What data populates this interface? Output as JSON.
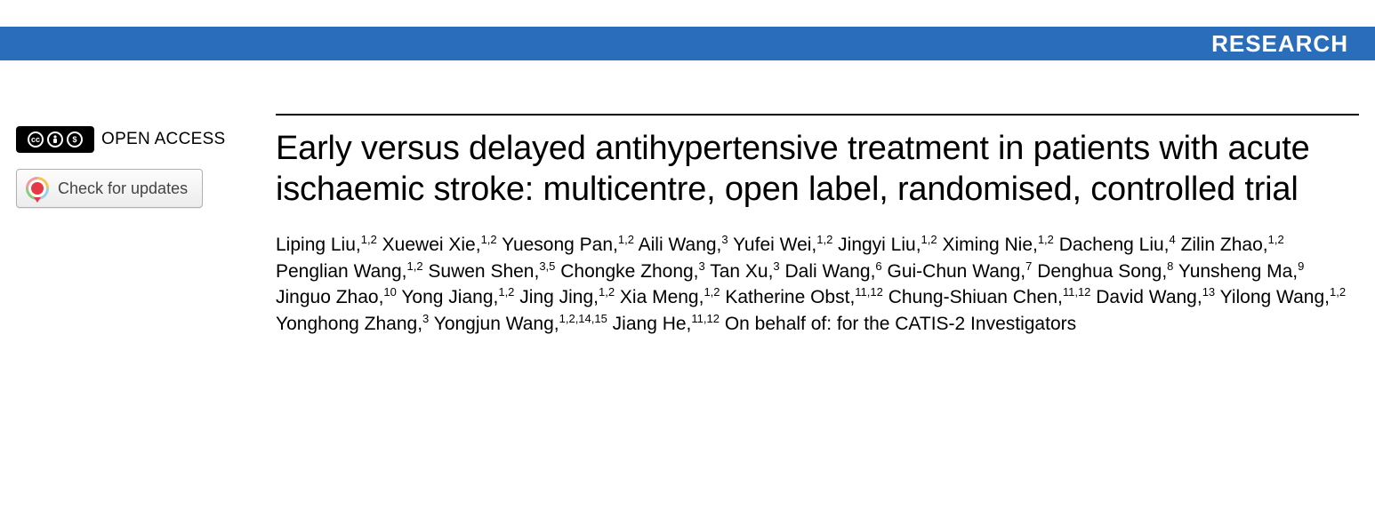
{
  "banner": {
    "label": "RESEARCH",
    "bg_color": "#2a6ebb",
    "text_color": "#ffffff"
  },
  "sidebar": {
    "open_access_label": "OPEN ACCESS",
    "cc_icons": [
      "CC",
      "👤",
      "$"
    ],
    "updates_label": "Check for updates"
  },
  "article": {
    "title": "Early versus delayed antihypertensive treatment in patients with acute ischaemic stroke: multicentre, open label, randomised, controlled trial",
    "authors": [
      {
        "name": "Liping Liu",
        "affil": "1,2"
      },
      {
        "name": "Xuewei Xie",
        "affil": "1,2"
      },
      {
        "name": "Yuesong Pan",
        "affil": "1,2"
      },
      {
        "name": "Aili Wang",
        "affil": "3"
      },
      {
        "name": "Yufei Wei",
        "affil": "1,2"
      },
      {
        "name": "Jingyi Liu",
        "affil": "1,2"
      },
      {
        "name": "Ximing Nie",
        "affil": "1,2"
      },
      {
        "name": "Dacheng Liu",
        "affil": "4"
      },
      {
        "name": "Zilin Zhao",
        "affil": "1,2"
      },
      {
        "name": "Penglian Wang",
        "affil": "1,2"
      },
      {
        "name": "Suwen Shen",
        "affil": "3,5"
      },
      {
        "name": "Chongke Zhong",
        "affil": "3"
      },
      {
        "name": "Tan Xu",
        "affil": "3"
      },
      {
        "name": "Dali Wang",
        "affil": "6"
      },
      {
        "name": "Gui-Chun Wang",
        "affil": "7"
      },
      {
        "name": "Denghua Song",
        "affil": "8"
      },
      {
        "name": "Yunsheng Ma",
        "affil": "9"
      },
      {
        "name": "Jinguo Zhao",
        "affil": "10"
      },
      {
        "name": "Yong Jiang",
        "affil": "1,2"
      },
      {
        "name": "Jing Jing",
        "affil": "1,2"
      },
      {
        "name": "Xia Meng",
        "affil": "1,2"
      },
      {
        "name": "Katherine Obst",
        "affil": "11,12"
      },
      {
        "name": "Chung-Shiuan Chen",
        "affil": "11,12"
      },
      {
        "name": "David Wang",
        "affil": "13"
      },
      {
        "name": "Yilong Wang",
        "affil": "1,2"
      },
      {
        "name": "Yonghong Zhang",
        "affil": "3"
      },
      {
        "name": "Yongjun Wang",
        "affil": "1,2,14,15"
      },
      {
        "name": "Jiang He",
        "affil": "11,12"
      }
    ],
    "on_behalf": "On behalf of: for the CATIS-2 Investigators"
  },
  "typography": {
    "title_fontsize": 38,
    "author_fontsize": 21,
    "banner_fontsize": 26
  }
}
